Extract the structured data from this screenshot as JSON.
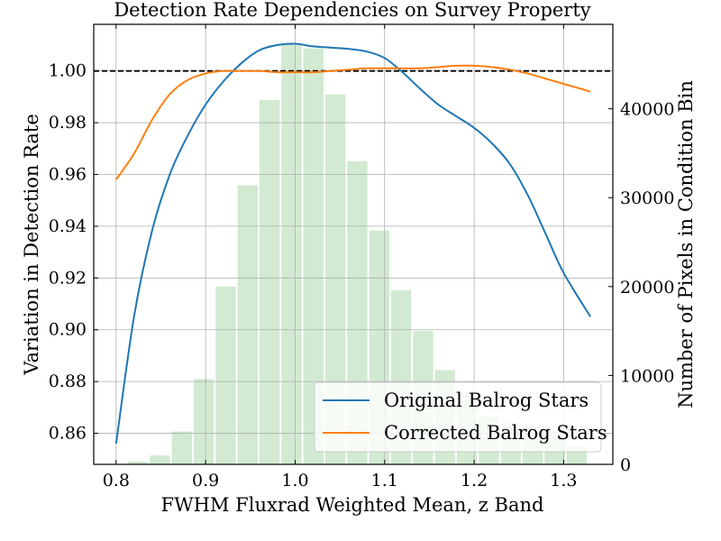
{
  "chart_data": {
    "type": "line",
    "title": "Detection Rate Dependencies on Survey Property",
    "xlabel": "FWHM Fluxrad Weighted Mean, z Band",
    "ylabel": "Variation in Detection Rate",
    "y2label": "Number of Pixels in Condition Bin",
    "xlim": [
      0.775,
      1.355
    ],
    "ylim": [
      0.848,
      1.018
    ],
    "y2lim": [
      0,
      49500
    ],
    "grid": true,
    "reference_line": {
      "y": 1.0,
      "style": "dashed",
      "color": "#000000"
    },
    "x_ticks": [
      0.8,
      0.9,
      1.0,
      1.1,
      1.2,
      1.3
    ],
    "x_tick_labels": [
      "0.8",
      "0.9",
      "1.0",
      "1.1",
      "1.2",
      "1.3"
    ],
    "y_ticks": [
      0.86,
      0.88,
      0.9,
      0.92,
      0.94,
      0.96,
      0.98,
      1.0
    ],
    "y_tick_labels": [
      "0.86",
      "0.88",
      "0.90",
      "0.92",
      "0.94",
      "0.96",
      "0.98",
      "1.00"
    ],
    "y2_ticks": [
      0,
      10000,
      20000,
      30000,
      40000
    ],
    "y2_tick_labels": [
      "0",
      "10000",
      "20000",
      "30000",
      "40000"
    ],
    "legend_position": "lower-right",
    "series": [
      {
        "name": "Original Balrog Stars",
        "color": "#1f77b4",
        "x": [
          0.8,
          0.82,
          0.84,
          0.86,
          0.88,
          0.9,
          0.92,
          0.94,
          0.96,
          0.98,
          1.0,
          1.02,
          1.04,
          1.06,
          1.08,
          1.1,
          1.12,
          1.14,
          1.16,
          1.18,
          1.2,
          1.22,
          1.24,
          1.26,
          1.28,
          1.3,
          1.33
        ],
        "y": [
          0.856,
          0.905,
          0.938,
          0.96,
          0.975,
          0.987,
          0.996,
          1.003,
          1.008,
          1.01,
          1.0105,
          1.0095,
          1.009,
          1.0085,
          1.0075,
          1.005,
          0.9995,
          0.993,
          0.987,
          0.9825,
          0.978,
          0.972,
          0.964,
          0.952,
          0.937,
          0.922,
          0.905
        ]
      },
      {
        "name": "Corrected Balrog Stars",
        "color": "#ff7f0e",
        "x": [
          0.8,
          0.82,
          0.84,
          0.86,
          0.88,
          0.9,
          0.92,
          0.94,
          0.96,
          0.98,
          1.0,
          1.02,
          1.04,
          1.06,
          1.08,
          1.1,
          1.12,
          1.14,
          1.16,
          1.18,
          1.2,
          1.22,
          1.24,
          1.26,
          1.28,
          1.3,
          1.33
        ],
        "y": [
          0.958,
          0.968,
          0.981,
          0.991,
          0.9965,
          0.999,
          1.0,
          1.0,
          1.0,
          0.9995,
          0.9995,
          0.9995,
          1.0,
          1.0005,
          1.001,
          1.001,
          1.001,
          1.001,
          1.0015,
          1.002,
          1.002,
          1.0015,
          1.0005,
          0.999,
          0.997,
          0.995,
          0.992
        ]
      }
    ],
    "histogram": {
      "axis": "y2",
      "color": "#2ca02c",
      "opacity": 0.22,
      "bin_width": 0.0245,
      "centers": [
        0.8,
        0.8245,
        0.849,
        0.8735,
        0.898,
        0.9225,
        0.947,
        0.9715,
        0.996,
        1.0205,
        1.045,
        1.0695,
        1.094,
        1.1185,
        1.143,
        1.1675,
        1.192,
        1.2165,
        1.241,
        1.2655,
        1.29,
        1.3145
      ],
      "counts": [
        0,
        300,
        1000,
        3700,
        9600,
        20000,
        31400,
        41000,
        47300,
        46800,
        41600,
        34100,
        26300,
        19600,
        15000,
        10600,
        7800,
        5400,
        4700,
        4200,
        3600,
        2000
      ]
    }
  }
}
